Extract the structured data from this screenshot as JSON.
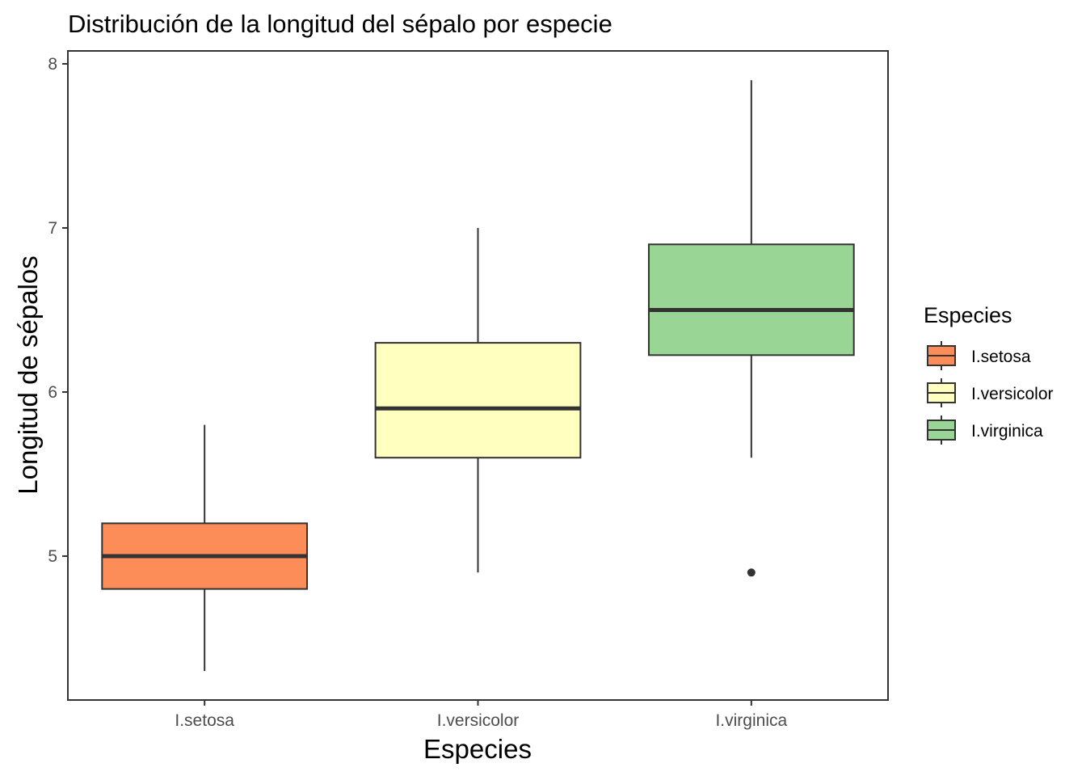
{
  "chart_data": {
    "type": "box",
    "title": "Distribución de la longitud del sépalo por especie",
    "xlabel": "Especies",
    "ylabel": "Longitud de sépalos",
    "ylim": [
      4.3,
      8.0
    ],
    "yticks": [
      5,
      6,
      7,
      8
    ],
    "categories": [
      "I.setosa",
      "I.versicolor",
      "I.virginica"
    ],
    "boxes": [
      {
        "category": "I.setosa",
        "whisker_low": 4.3,
        "q1": 4.8,
        "median": 5.0,
        "q3": 5.2,
        "whisker_high": 5.8,
        "outliers": [],
        "color": "#FC8D59"
      },
      {
        "category": "I.versicolor",
        "whisker_low": 4.9,
        "q1": 5.6,
        "median": 5.9,
        "q3": 6.3,
        "whisker_high": 7.0,
        "outliers": [],
        "color": "#FFFFBF"
      },
      {
        "category": "I.virginica",
        "whisker_low": 5.6,
        "q1": 6.225,
        "median": 6.5,
        "q3": 6.9,
        "whisker_high": 7.9,
        "outliers": [
          4.9
        ],
        "color": "#99D594"
      }
    ],
    "legend": {
      "title": "Especies",
      "position": "right",
      "entries": [
        {
          "label": "I.setosa",
          "color": "#FC8D59"
        },
        {
          "label": "I.versicolor",
          "color": "#FFFFBF"
        },
        {
          "label": "I.virginica",
          "color": "#99D594"
        }
      ]
    },
    "grid": false
  }
}
